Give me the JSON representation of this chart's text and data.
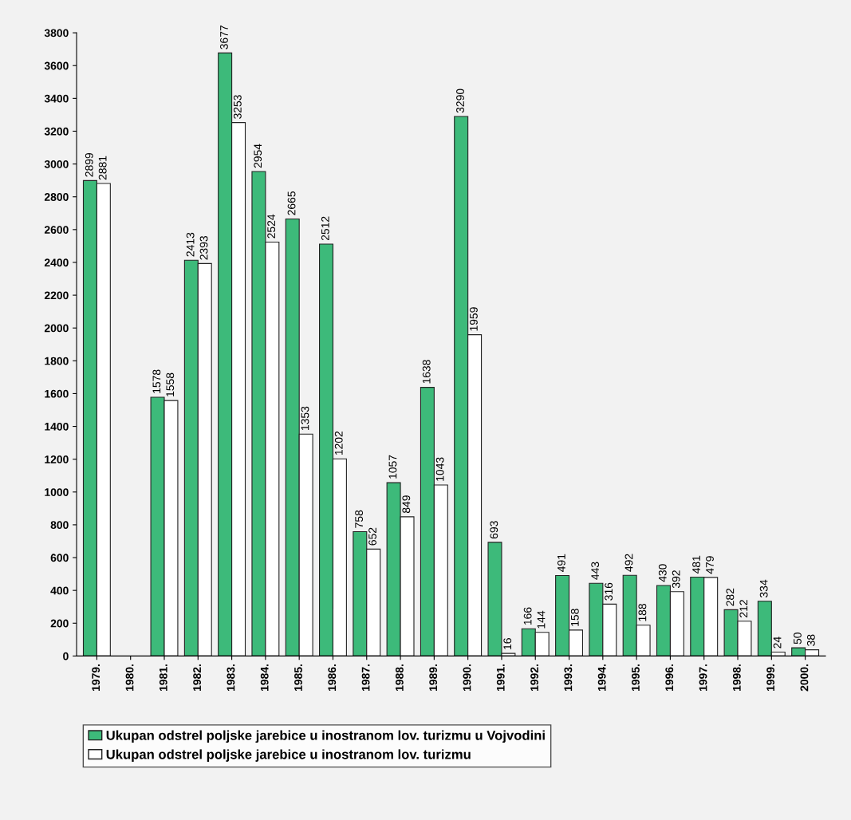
{
  "chart_data": {
    "type": "bar",
    "categories": [
      "1979.",
      "1980.",
      "1981.",
      "1982.",
      "1983.",
      "1984.",
      "1985.",
      "1986.",
      "1987.",
      "1988.",
      "1989.",
      "1990.",
      "1991.",
      "1992.",
      "1993.",
      "1994.",
      "1995.",
      "1996.",
      "1997.",
      "1998.",
      "1999.",
      "2000."
    ],
    "series": [
      {
        "name": "Ukupan odstrel poljske jarebice u inostranom lov. turizmu u Vojvodini",
        "color": "#3dba7a",
        "values": [
          2899,
          null,
          1578,
          2413,
          3677,
          2954,
          2665,
          2512,
          758,
          1057,
          1638,
          3290,
          693,
          166,
          491,
          443,
          492,
          430,
          481,
          282,
          334,
          50
        ]
      },
      {
        "name": "Ukupan odstrel poljske jarebice u inostranom lov. turizmu",
        "color": "#ffffff",
        "values": [
          2881,
          null,
          1558,
          2393,
          3253,
          2524,
          1353,
          1202,
          652,
          849,
          1043,
          1959,
          16,
          144,
          158,
          316,
          188,
          392,
          479,
          212,
          24,
          38
        ]
      }
    ],
    "ylim": [
      0,
      3800
    ],
    "yticks": [
      0,
      200,
      400,
      600,
      800,
      1000,
      1200,
      1400,
      1600,
      1800,
      2000,
      2200,
      2400,
      2600,
      2800,
      3000,
      3200,
      3400,
      3600,
      3800
    ],
    "data_labels": true,
    "grid": false,
    "legend": "bottom"
  }
}
